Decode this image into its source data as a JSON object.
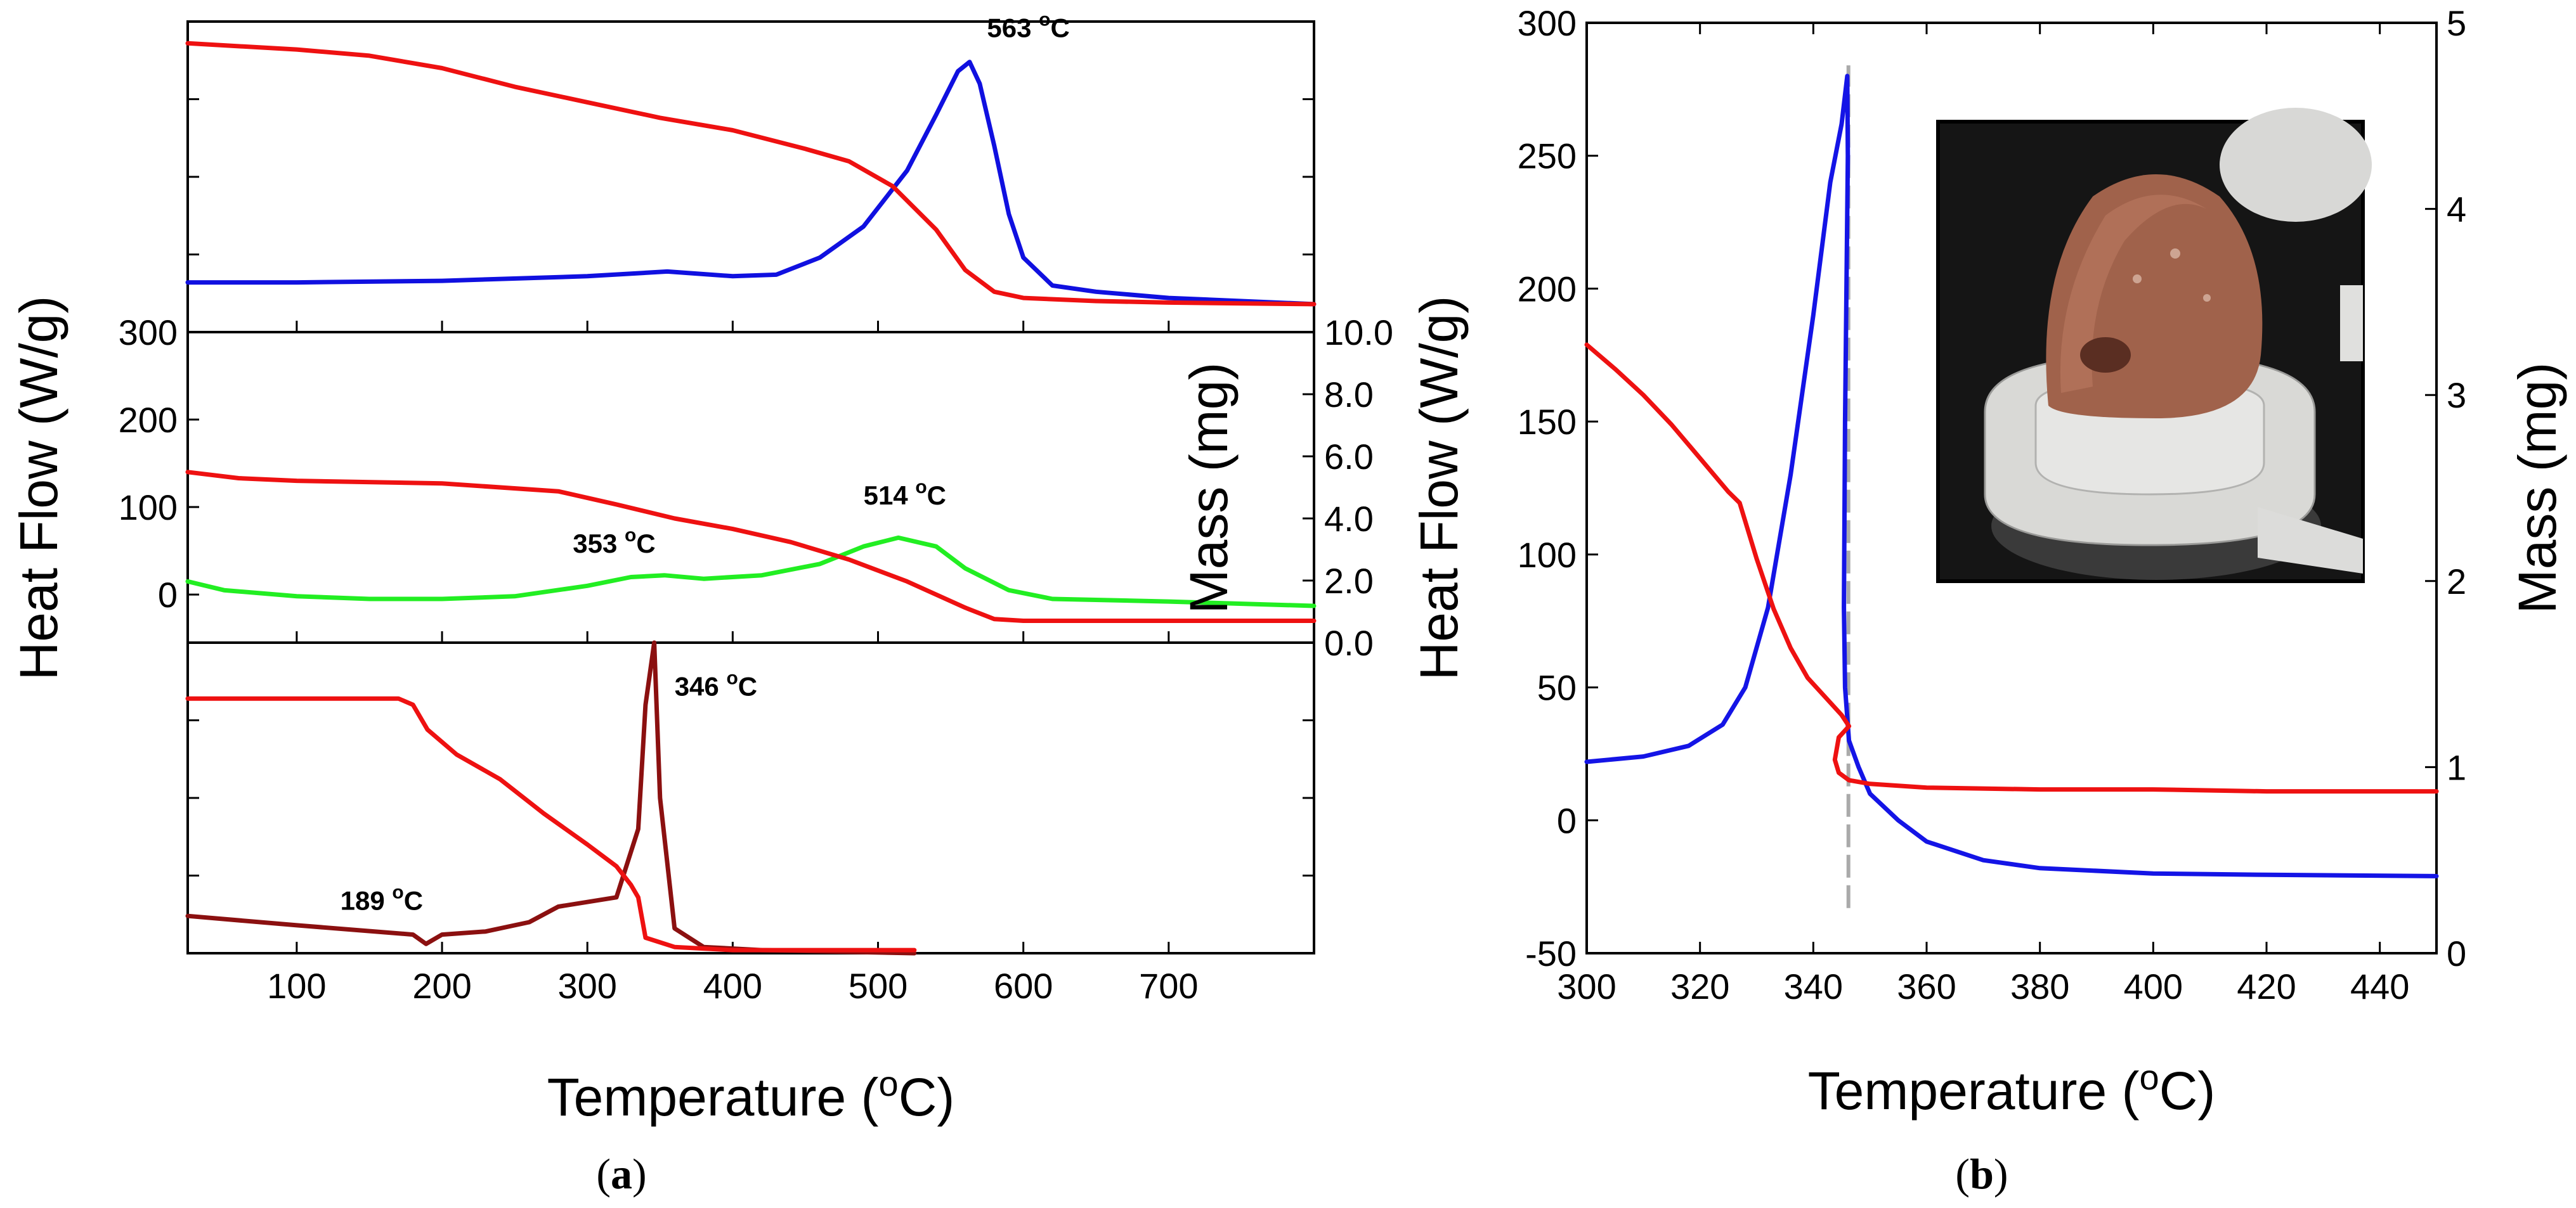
{
  "chart_data": [
    {
      "id": "a",
      "type": "line",
      "caption": "a",
      "xlabel": "Temperature (",
      "xlabel_sup": "o",
      "xlabel_tail": "C)",
      "ylabel_left": "Heat Flow (W/g)",
      "ylabel_right": "Mass (mg)",
      "xlim": [
        25,
        800
      ],
      "xticks": [
        "100",
        "200",
        "300",
        "400",
        "500",
        "600",
        "700"
      ],
      "xtick_values": [
        100,
        200,
        300,
        400,
        500,
        600,
        700
      ],
      "middle_left_ticks": [
        "0",
        "100",
        "200",
        "300"
      ],
      "middle_left_tick_values": [
        0,
        100,
        200,
        300
      ],
      "middle_left_ylim": [
        -55,
        300
      ],
      "right_ticks": [
        "0.0",
        "2.0",
        "4.0",
        "6.0",
        "8.0",
        "10.0"
      ],
      "right_tick_values": [
        0,
        2,
        4,
        6,
        8,
        10
      ],
      "right_ylim": [
        0,
        10
      ],
      "panels": [
        {
          "name": "top",
          "ylim": [
            0,
            100
          ],
          "annotation": {
            "value": "563",
            "sup": "o",
            "unit": "C",
            "x": 575,
            "y": 95
          },
          "series": [
            {
              "name": "heat-flow-blue",
              "color": "#1010e0",
              "x": [
                25,
                100,
                200,
                300,
                355,
                400,
                430,
                460,
                490,
                520,
                540,
                555,
                563,
                570,
                580,
                590,
                600,
                620,
                650,
                700,
                750,
                800
              ],
              "y": [
                16,
                16,
                16.5,
                18,
                19.5,
                18,
                18.5,
                24,
                34,
                52,
                70,
                84,
                87,
                80,
                60,
                38,
                24,
                15,
                13,
                11,
                10,
                9
              ]
            },
            {
              "name": "mass-red",
              "color": "#ee1111",
              "x": [
                25,
                100,
                150,
                200,
                250,
                300,
                350,
                400,
                450,
                480,
                510,
                540,
                560,
                580,
                600,
                650,
                700,
                800
              ],
              "y": [
                93,
                91,
                89,
                85,
                79,
                74,
                69,
                65,
                59,
                55,
                47,
                33,
                20,
                13,
                11,
                10,
                9.5,
                9
              ]
            }
          ]
        },
        {
          "name": "middle",
          "ylim": [
            -55,
            300
          ],
          "annotations": [
            {
              "value": "353",
              "sup": "o",
              "unit": "C",
              "x": 290,
              "y": 48
            },
            {
              "value": "514",
              "sup": "o",
              "unit": "C",
              "x": 490,
              "y": 103
            }
          ],
          "series": [
            {
              "name": "heat-flow-green",
              "color": "#22ee22",
              "x": [
                25,
                50,
                100,
                150,
                200,
                250,
                300,
                330,
                353,
                380,
                420,
                460,
                490,
                514,
                540,
                560,
                590,
                620,
                700,
                800
              ],
              "y": [
                15,
                5,
                -2,
                -5,
                -5,
                -2,
                10,
                20,
                22,
                18,
                22,
                35,
                55,
                65,
                55,
                30,
                5,
                -5,
                -8,
                -13
              ]
            },
            {
              "name": "mass-red",
              "color": "#ee1111",
              "x": [
                25,
                60,
                100,
                200,
                280,
                320,
                360,
                400,
                440,
                480,
                520,
                560,
                580,
                600,
                700,
                800
              ],
              "y": [
                140,
                133,
                130,
                127,
                118,
                103,
                87,
                75,
                60,
                40,
                15,
                -15,
                -28,
                -30,
                -30,
                -30
              ]
            }
          ]
        },
        {
          "name": "bottom",
          "ylim": [
            0,
            100
          ],
          "annotations": [
            {
              "value": "346",
              "sup": "o",
              "unit": "C",
              "x": 360,
              "y": 83
            },
            {
              "value": "189",
              "sup": "o",
              "unit": "C",
              "x": 130,
              "y": 14
            }
          ],
          "series": [
            {
              "name": "heat-flow-darkred",
              "color": "#8b1010",
              "x": [
                25,
                100,
                180,
                189,
                200,
                230,
                260,
                280,
                320,
                335,
                340,
                346,
                350,
                360,
                380,
                420,
                525
              ],
              "y": [
                12,
                9,
                6,
                3,
                6,
                7,
                10,
                15,
                18,
                40,
                80,
                100,
                50,
                8,
                2,
                1,
                0
              ]
            },
            {
              "name": "mass-red",
              "color": "#ee1111",
              "x": [
                25,
                100,
                170,
                180,
                190,
                210,
                240,
                270,
                300,
                320,
                330,
                335,
                340,
                360,
                400,
                525
              ],
              "y": [
                82,
                82,
                82,
                80,
                72,
                64,
                56,
                45,
                35,
                28,
                22,
                18,
                5,
                2,
                1,
                1
              ]
            }
          ]
        }
      ]
    },
    {
      "id": "b",
      "type": "line",
      "caption": "b",
      "xlabel": "Temperature (",
      "xlabel_sup": "o",
      "xlabel_tail": "C)",
      "ylabel_left": "Heat Flow (W/g)",
      "ylabel_right": "Mass (mg)",
      "xlim": [
        300,
        450
      ],
      "ylim_left": [
        -50,
        300
      ],
      "ylim_right": [
        0,
        5
      ],
      "xticks": [
        "300",
        "320",
        "340",
        "360",
        "380",
        "400",
        "420",
        "440"
      ],
      "xtick_values": [
        300,
        320,
        340,
        360,
        380,
        400,
        420,
        440
      ],
      "left_ticks": [
        "-50",
        "0",
        "50",
        "100",
        "150",
        "200",
        "250",
        "300"
      ],
      "left_tick_values": [
        -50,
        0,
        50,
        100,
        150,
        200,
        250,
        300
      ],
      "right_ticks": [
        "0",
        "1",
        "2",
        "3",
        "4",
        "5"
      ],
      "right_tick_values": [
        0,
        1,
        2,
        3,
        4,
        5
      ],
      "vline_x": 346.2,
      "inset": "photo of sample crucible",
      "series": [
        {
          "name": "heat-flow-blue",
          "axis": "left",
          "color": "#1414e6",
          "x": [
            300,
            310,
            318,
            324,
            328,
            332,
            336,
            340,
            343,
            345,
            346,
            346.1,
            345.6,
            345.4,
            345.6,
            346.3,
            348,
            350,
            355,
            360,
            370,
            380,
            400,
            420,
            450
          ],
          "y": [
            22,
            24,
            28,
            36,
            50,
            80,
            130,
            190,
            240,
            262,
            280,
            250,
            150,
            80,
            50,
            30,
            20,
            10,
            0,
            -8,
            -15,
            -18,
            -20,
            -20.5,
            -21
          ]
        },
        {
          "name": "mass-red",
          "axis": "right",
          "color": "#ee1111",
          "x": [
            300,
            305,
            310,
            315,
            320,
            325,
            327,
            330,
            333,
            336,
            339,
            342,
            345,
            346.3,
            344.5,
            343.8,
            344.5,
            346.3,
            350,
            360,
            380,
            400,
            420,
            450
          ],
          "y": [
            3.27,
            3.14,
            3.0,
            2.84,
            2.66,
            2.48,
            2.42,
            2.12,
            1.85,
            1.64,
            1.48,
            1.38,
            1.28,
            1.22,
            1.16,
            1.04,
            0.97,
            0.93,
            0.91,
            0.89,
            0.88,
            0.88,
            0.87,
            0.87
          ]
        }
      ]
    }
  ]
}
